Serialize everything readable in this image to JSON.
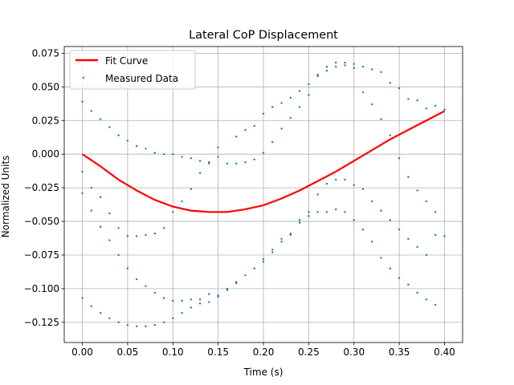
{
  "chart_data": {
    "type": "scatter",
    "title": "Lateral CoP Displacement",
    "xlabel": "Time (s)",
    "ylabel": "Normalized Units",
    "xlim": [
      -0.02,
      0.42
    ],
    "ylim": [
      -0.14,
      0.08
    ],
    "grid": true,
    "legend_placement": "top-left",
    "x_ticks": [
      0.0,
      0.05,
      0.1,
      0.15,
      0.2,
      0.25,
      0.3,
      0.35,
      0.4
    ],
    "x_tick_labels": [
      "0.00",
      "0.05",
      "0.10",
      "0.15",
      "0.20",
      "0.25",
      "0.30",
      "0.35",
      "0.40"
    ],
    "y_ticks": [
      -0.125,
      -0.1,
      -0.075,
      -0.05,
      -0.025,
      0.0,
      0.025,
      0.05,
      0.075
    ],
    "y_tick_labels": [
      "−0.125",
      "−0.100",
      "−0.075",
      "−0.050",
      "−0.025",
      "0.000",
      "0.025",
      "0.050",
      "0.075"
    ],
    "series": [
      {
        "name": "Fit Curve",
        "kind": "line",
        "color": "#ff0000",
        "x": [
          0.0,
          0.02,
          0.04,
          0.06,
          0.08,
          0.1,
          0.12,
          0.14,
          0.16,
          0.18,
          0.2,
          0.22,
          0.24,
          0.26,
          0.28,
          0.3,
          0.32,
          0.34,
          0.36,
          0.38,
          0.4
        ],
        "y": [
          0.0,
          -0.009,
          -0.019,
          -0.027,
          -0.034,
          -0.039,
          -0.042,
          -0.043,
          -0.043,
          -0.041,
          -0.038,
          -0.033,
          -0.027,
          -0.02,
          -0.013,
          -0.005,
          0.003,
          0.011,
          0.018,
          0.025,
          0.032
        ]
      },
      {
        "name": "Measured Data",
        "kind": "scatter",
        "color": "#1f77b4",
        "points": [
          [
            0.0,
            0.039
          ],
          [
            0.0,
            -0.013
          ],
          [
            0.0,
            -0.029
          ],
          [
            0.0,
            -0.107
          ],
          [
            0.01,
            0.032
          ],
          [
            0.01,
            -0.025
          ],
          [
            0.01,
            -0.042
          ],
          [
            0.01,
            -0.113
          ],
          [
            0.02,
            0.026
          ],
          [
            0.02,
            -0.032
          ],
          [
            0.02,
            -0.054
          ],
          [
            0.02,
            -0.118
          ],
          [
            0.03,
            0.02
          ],
          [
            0.03,
            -0.044
          ],
          [
            0.03,
            -0.064
          ],
          [
            0.03,
            -0.122
          ],
          [
            0.04,
            0.014
          ],
          [
            0.04,
            -0.055
          ],
          [
            0.04,
            -0.075
          ],
          [
            0.04,
            -0.125
          ],
          [
            0.05,
            0.01
          ],
          [
            0.05,
            -0.061
          ],
          [
            0.05,
            -0.085
          ],
          [
            0.05,
            -0.127
          ],
          [
            0.06,
            0.006
          ],
          [
            0.06,
            -0.061
          ],
          [
            0.06,
            -0.093
          ],
          [
            0.06,
            -0.128
          ],
          [
            0.07,
            0.004
          ],
          [
            0.07,
            -0.06
          ],
          [
            0.07,
            -0.098
          ],
          [
            0.07,
            -0.128
          ],
          [
            0.08,
            0.001
          ],
          [
            0.08,
            -0.059
          ],
          [
            0.08,
            -0.103
          ],
          [
            0.08,
            -0.127
          ],
          [
            0.09,
            0.0
          ],
          [
            0.09,
            -0.055
          ],
          [
            0.09,
            -0.107
          ],
          [
            0.09,
            -0.125
          ],
          [
            0.1,
            0.0
          ],
          [
            0.1,
            -0.043
          ],
          [
            0.1,
            -0.109
          ],
          [
            0.1,
            -0.122
          ],
          [
            0.11,
            -0.002
          ],
          [
            0.11,
            -0.035
          ],
          [
            0.11,
            -0.109
          ],
          [
            0.11,
            -0.118
          ],
          [
            0.12,
            -0.003
          ],
          [
            0.12,
            -0.026
          ],
          [
            0.12,
            -0.108
          ],
          [
            0.12,
            -0.114
          ],
          [
            0.13,
            -0.005
          ],
          [
            0.13,
            -0.014
          ],
          [
            0.13,
            -0.108
          ],
          [
            0.13,
            -0.111
          ],
          [
            0.14,
            -0.006
          ],
          [
            0.14,
            -0.007
          ],
          [
            0.14,
            -0.104
          ],
          [
            0.14,
            -0.11
          ],
          [
            0.15,
            0.005
          ],
          [
            0.15,
            -0.002
          ],
          [
            0.15,
            -0.105
          ],
          [
            0.15,
            -0.106
          ],
          [
            0.16,
            -0.007
          ],
          [
            0.16,
            -0.1
          ],
          [
            0.16,
            -0.101
          ],
          [
            0.17,
            0.013
          ],
          [
            0.17,
            -0.007
          ],
          [
            0.17,
            -0.095
          ],
          [
            0.17,
            -0.096
          ],
          [
            0.18,
            0.018
          ],
          [
            0.18,
            -0.006
          ],
          [
            0.18,
            -0.09
          ],
          [
            0.19,
            0.021
          ],
          [
            0.19,
            -0.004
          ],
          [
            0.19,
            -0.085
          ],
          [
            0.2,
            0.03
          ],
          [
            0.2,
            0.001
          ],
          [
            0.2,
            -0.078
          ],
          [
            0.2,
            -0.08
          ],
          [
            0.21,
            0.035
          ],
          [
            0.21,
            0.009
          ],
          [
            0.21,
            -0.071
          ],
          [
            0.21,
            -0.073
          ],
          [
            0.22,
            0.038
          ],
          [
            0.22,
            0.019
          ],
          [
            0.22,
            -0.063
          ],
          [
            0.22,
            -0.065
          ],
          [
            0.23,
            0.042
          ],
          [
            0.23,
            0.027
          ],
          [
            0.23,
            -0.059
          ],
          [
            0.23,
            -0.06
          ],
          [
            0.24,
            0.047
          ],
          [
            0.24,
            0.035
          ],
          [
            0.24,
            -0.049
          ],
          [
            0.24,
            -0.051
          ],
          [
            0.25,
            0.052
          ],
          [
            0.25,
            0.044
          ],
          [
            0.25,
            -0.043
          ],
          [
            0.25,
            -0.046
          ],
          [
            0.26,
            0.059
          ],
          [
            0.26,
            0.058
          ],
          [
            0.26,
            -0.03
          ],
          [
            0.26,
            -0.043
          ],
          [
            0.27,
            0.065
          ],
          [
            0.27,
            0.062
          ],
          [
            0.27,
            -0.022
          ],
          [
            0.27,
            -0.043
          ],
          [
            0.28,
            0.068
          ],
          [
            0.28,
            0.065
          ],
          [
            0.28,
            -0.019
          ],
          [
            0.28,
            -0.041
          ],
          [
            0.29,
            0.068
          ],
          [
            0.29,
            0.066
          ],
          [
            0.29,
            -0.019
          ],
          [
            0.29,
            -0.043
          ],
          [
            0.3,
            0.067
          ],
          [
            0.3,
            0.064
          ],
          [
            0.3,
            -0.023
          ],
          [
            0.3,
            -0.049
          ],
          [
            0.31,
            0.065
          ],
          [
            0.31,
            0.046
          ],
          [
            0.31,
            -0.026
          ],
          [
            0.31,
            -0.056
          ],
          [
            0.32,
            0.063
          ],
          [
            0.32,
            0.037
          ],
          [
            0.32,
            -0.035
          ],
          [
            0.32,
            -0.065
          ],
          [
            0.33,
            0.061
          ],
          [
            0.33,
            0.026
          ],
          [
            0.33,
            -0.042
          ],
          [
            0.33,
            -0.077
          ],
          [
            0.34,
            0.053
          ],
          [
            0.34,
            0.014
          ],
          [
            0.34,
            -0.049
          ],
          [
            0.34,
            -0.085
          ],
          [
            0.35,
            0.049
          ],
          [
            0.35,
            -0.003
          ],
          [
            0.35,
            -0.056
          ],
          [
            0.35,
            -0.092
          ],
          [
            0.36,
            0.041
          ],
          [
            0.36,
            -0.017
          ],
          [
            0.36,
            -0.063
          ],
          [
            0.36,
            -0.097
          ],
          [
            0.37,
            0.04
          ],
          [
            0.37,
            -0.027
          ],
          [
            0.37,
            -0.069
          ],
          [
            0.37,
            -0.103
          ],
          [
            0.38,
            0.034
          ],
          [
            0.38,
            -0.035
          ],
          [
            0.38,
            -0.075
          ],
          [
            0.38,
            -0.108
          ],
          [
            0.39,
            0.036
          ],
          [
            0.39,
            -0.043
          ],
          [
            0.39,
            -0.06
          ],
          [
            0.39,
            -0.112
          ],
          [
            0.4,
            0.033
          ],
          [
            0.4,
            -0.061
          ]
        ]
      }
    ]
  }
}
